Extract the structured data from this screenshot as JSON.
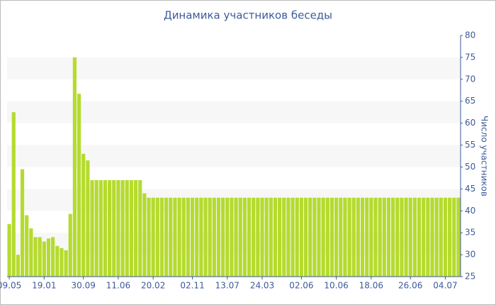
{
  "chart_data": {
    "type": "bar",
    "title": "Динамика участников беседы",
    "y_label": "Число участников",
    "categories": [
      "09.05",
      null,
      null,
      null,
      null,
      null,
      null,
      null,
      "19.01",
      null,
      null,
      null,
      null,
      null,
      null,
      null,
      null,
      "30.09",
      null,
      null,
      null,
      null,
      null,
      null,
      null,
      "11.06",
      null,
      null,
      null,
      null,
      null,
      null,
      null,
      "20.02",
      null,
      null,
      null,
      null,
      null,
      null,
      null,
      null,
      "02.11",
      null,
      null,
      null,
      null,
      null,
      null,
      null,
      "13.07",
      null,
      null,
      null,
      null,
      null,
      null,
      null,
      "24.03",
      null,
      null,
      null,
      null,
      null,
      null,
      null,
      null,
      "02.06",
      null,
      null,
      null,
      null,
      null,
      null,
      null,
      "10.06",
      null,
      null,
      null,
      null,
      null,
      null,
      null,
      "18.06",
      null,
      null,
      null,
      null,
      null,
      null,
      null,
      null,
      "26.06",
      null,
      null,
      null,
      null,
      null,
      null,
      null,
      "04.07",
      null,
      null,
      null
    ],
    "values": [
      37,
      62.5,
      30,
      49.5,
      39,
      36,
      34,
      34,
      33,
      33.7,
      34,
      32,
      31.5,
      31,
      39.3,
      75,
      66.7,
      53,
      51.5,
      47,
      47,
      47,
      47,
      47,
      47,
      47,
      47,
      47,
      47,
      47,
      47,
      44,
      43,
      43,
      43,
      43,
      43,
      43,
      43,
      43,
      43,
      43,
      43,
      43,
      43,
      43,
      43,
      43,
      43,
      43,
      43,
      43,
      43,
      43,
      43,
      43,
      43,
      43,
      43,
      43,
      43,
      43,
      43,
      43,
      43,
      43,
      43,
      43,
      43,
      43,
      43,
      43,
      43,
      43,
      43,
      43,
      43,
      43,
      43,
      43,
      43,
      43,
      43,
      43,
      43,
      43,
      43,
      43,
      43,
      43,
      43,
      43,
      43,
      43,
      43,
      43,
      43,
      43,
      43,
      43,
      43,
      43,
      43,
      43
    ],
    "color": "#b5db2e",
    "ylim": [
      25,
      80
    ],
    "yticks": [
      25,
      30,
      35,
      40,
      45,
      50,
      55,
      60,
      65,
      70,
      75,
      80
    ],
    "bands": true,
    "y_axis_side": "right"
  }
}
